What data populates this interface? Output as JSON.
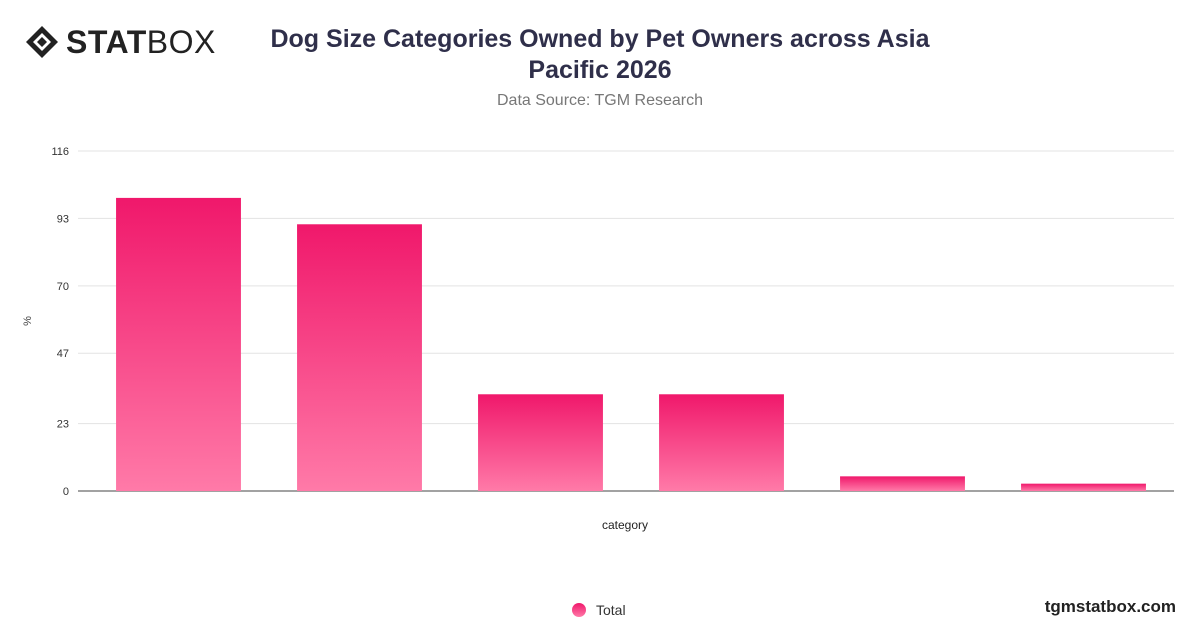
{
  "header": {
    "brand_bold": "STAT",
    "brand_light": "BOX",
    "title": "Dog Size Categories Owned by Pet Owners across Asia Pacific 2026",
    "subtitle": "Data Source: TGM Research"
  },
  "footer": {
    "site": "tgmstatbox.com"
  },
  "colors": {
    "bar_top": "#f0186b",
    "bar_bottom": "#ff7aa8",
    "grid": "#e3e3e3"
  },
  "chart_data": {
    "type": "bar",
    "categories": [
      "",
      "",
      "",
      "",
      "",
      ""
    ],
    "series": [
      {
        "name": "Total",
        "values": [
          100,
          91,
          33,
          33,
          5,
          2.5
        ]
      }
    ],
    "xlabel": "category",
    "ylabel": "%",
    "ylim": [
      0,
      116
    ],
    "yticks": [
      0,
      23,
      47,
      70,
      93,
      116
    ],
    "grid": true,
    "legend_position": "bottom"
  }
}
